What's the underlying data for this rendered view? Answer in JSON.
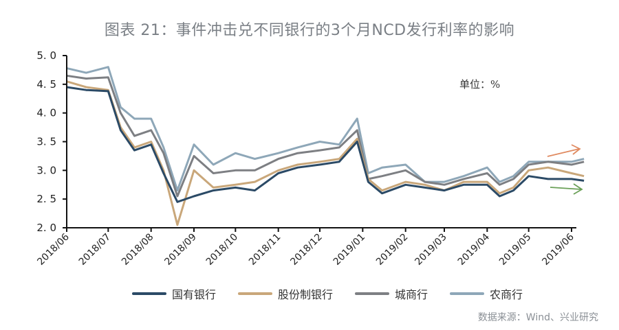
{
  "title": "图表 21：事件冲击兑不同银行的3个月NCD发行利率的影响",
  "unit_label": "单位：%",
  "source": "数据来源：Wind、兴业研究",
  "legend": [
    {
      "label": "国有银行",
      "color": "#2b4a66"
    },
    {
      "label": "股份制银行",
      "color": "#c9a77a"
    },
    {
      "label": "城商行",
      "color": "#7d7f83"
    },
    {
      "label": "农商行",
      "color": "#8ea7b8"
    }
  ],
  "annotations": [
    {
      "type": "arrow",
      "direction": "up-right",
      "color": "#e08a60"
    },
    {
      "type": "arrow",
      "direction": "right",
      "color": "#6aa057"
    }
  ],
  "chart_data": {
    "type": "line",
    "title": "图表 21：事件冲击兑不同银行的3个月NCD发行利率的影响",
    "xlabel": "",
    "ylabel": "单位：%",
    "ylim": [
      2.0,
      5.0
    ],
    "yticks": [
      "2.0",
      "2.5",
      "3.0",
      "3.5",
      "4.0",
      "4.5",
      "5.0"
    ],
    "xticks": [
      "2018/06",
      "2018/07",
      "2018/08",
      "2018/09",
      "2018/10",
      "2018/11",
      "2018/12",
      "2019/01",
      "2019/02",
      "2019/03",
      "2019/04",
      "2019/05",
      "2019/06"
    ],
    "grid": false,
    "legend_position": "bottom",
    "x": [
      "2018/06/01",
      "2018/06/15",
      "2018/07/01",
      "2018/07/10",
      "2018/07/20",
      "2018/08/01",
      "2018/08/10",
      "2018/08/20",
      "2018/09/01",
      "2018/09/15",
      "2018/10/01",
      "2018/10/15",
      "2018/11/01",
      "2018/11/15",
      "2018/12/01",
      "2018/12/15",
      "2018/12/28",
      "2019/01/05",
      "2019/01/15",
      "2019/02/01",
      "2019/02/15",
      "2019/03/01",
      "2019/03/15",
      "2019/04/01",
      "2019/04/10",
      "2019/04/20",
      "2019/05/01",
      "2019/05/15",
      "2019/06/01",
      "2019/06/10"
    ],
    "series": [
      {
        "name": "国有银行",
        "color": "#2b4a66",
        "values": [
          4.45,
          4.4,
          4.38,
          3.7,
          3.35,
          3.45,
          2.95,
          2.45,
          2.55,
          2.65,
          2.7,
          2.65,
          2.95,
          3.05,
          3.1,
          3.15,
          3.5,
          2.8,
          2.6,
          2.75,
          2.7,
          2.65,
          2.75,
          2.75,
          2.55,
          2.65,
          2.9,
          2.85,
          2.85,
          2.82
        ]
      },
      {
        "name": "股份制银行",
        "color": "#c9a77a",
        "values": [
          4.55,
          4.45,
          4.4,
          3.75,
          3.4,
          3.5,
          3.0,
          2.05,
          3.0,
          2.7,
          2.75,
          2.8,
          3.0,
          3.1,
          3.15,
          3.2,
          3.55,
          2.85,
          2.65,
          2.8,
          2.75,
          2.65,
          2.8,
          2.8,
          2.6,
          2.7,
          3.0,
          3.05,
          2.95,
          2.9
        ]
      },
      {
        "name": "城商行",
        "color": "#7d7f83",
        "values": [
          4.65,
          4.6,
          4.62,
          4.0,
          3.6,
          3.7,
          3.3,
          2.55,
          3.25,
          2.95,
          3.0,
          3.0,
          3.2,
          3.3,
          3.35,
          3.4,
          3.7,
          2.85,
          2.9,
          3.0,
          2.8,
          2.75,
          2.85,
          2.95,
          2.75,
          2.85,
          3.1,
          3.15,
          3.1,
          3.15
        ]
      },
      {
        "name": "农商行",
        "color": "#8ea7b8",
        "values": [
          4.78,
          4.7,
          4.8,
          4.1,
          3.9,
          3.9,
          3.4,
          2.65,
          3.45,
          3.1,
          3.3,
          3.2,
          3.3,
          3.4,
          3.5,
          3.45,
          3.9,
          2.95,
          3.05,
          3.1,
          2.8,
          2.8,
          2.9,
          3.05,
          2.8,
          2.9,
          3.15,
          3.15,
          3.15,
          3.2
        ]
      }
    ]
  }
}
